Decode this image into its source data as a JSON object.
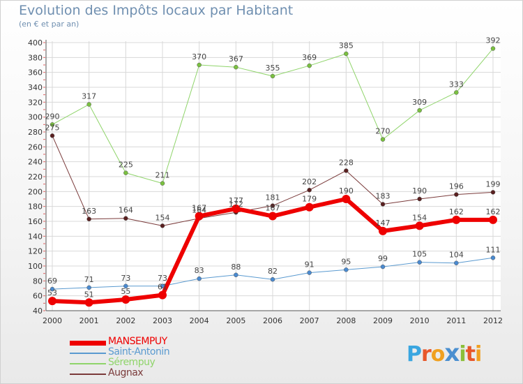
{
  "header": {
    "title": "Evolution des Impôts locaux par Habitant",
    "subtitle": "(en € et par an)"
  },
  "logo": {
    "letters": [
      "P",
      "r",
      "o",
      "x",
      "i",
      "t",
      "i"
    ],
    "colors": [
      "#3aa6e0",
      "#e8572a",
      "#f0a020",
      "#4a8fd0",
      "#8cbf3a",
      "#e8572a",
      "#f0a020"
    ]
  },
  "chart_data": {
    "type": "line",
    "title": "Evolution des Impôts locaux par Habitant",
    "subtitle": "(en € et par an)",
    "xlabel": "",
    "ylabel": "",
    "x": [
      "2000",
      "2001",
      "2002",
      "2003",
      "2004",
      "2005",
      "2006",
      "2007",
      "2008",
      "2009",
      "2010",
      "2011",
      "2012"
    ],
    "ylim": [
      40,
      400
    ],
    "yticks": [
      40,
      60,
      80,
      100,
      120,
      140,
      160,
      180,
      200,
      220,
      240,
      260,
      280,
      300,
      320,
      340,
      360,
      380,
      400
    ],
    "grid": true,
    "legend_position": "bottom-left",
    "series": [
      {
        "name": "Sérempuy",
        "color": "#8fd46a",
        "marker": "#7ac040",
        "width": 1,
        "values": [
          290,
          317,
          225,
          211,
          370,
          367,
          355,
          369,
          385,
          270,
          309,
          333,
          392
        ]
      },
      {
        "name": "Augnax",
        "color": "#7a3a3a",
        "marker": "#5a2020",
        "width": 1,
        "values": [
          275,
          163,
          164,
          154,
          164,
          172,
          181,
          202,
          228,
          183,
          190,
          196,
          199
        ]
      },
      {
        "name": "Saint-Antonin",
        "color": "#5a9ad0",
        "marker": "#4a8ad0",
        "width": 1,
        "values": [
          69,
          71,
          73,
          73,
          83,
          88,
          82,
          91,
          95,
          99,
          105,
          104,
          111
        ]
      },
      {
        "name": "MANSEMPUY",
        "color": "#ee0000",
        "marker": "#ee0000",
        "width": 6,
        "values": [
          53,
          51,
          55,
          61,
          167,
          177,
          167,
          179,
          190,
          147,
          154,
          162,
          162
        ]
      }
    ],
    "legend_order": [
      "MANSEMPUY",
      "Saint-Antonin",
      "Sérempuy",
      "Augnax"
    ]
  }
}
